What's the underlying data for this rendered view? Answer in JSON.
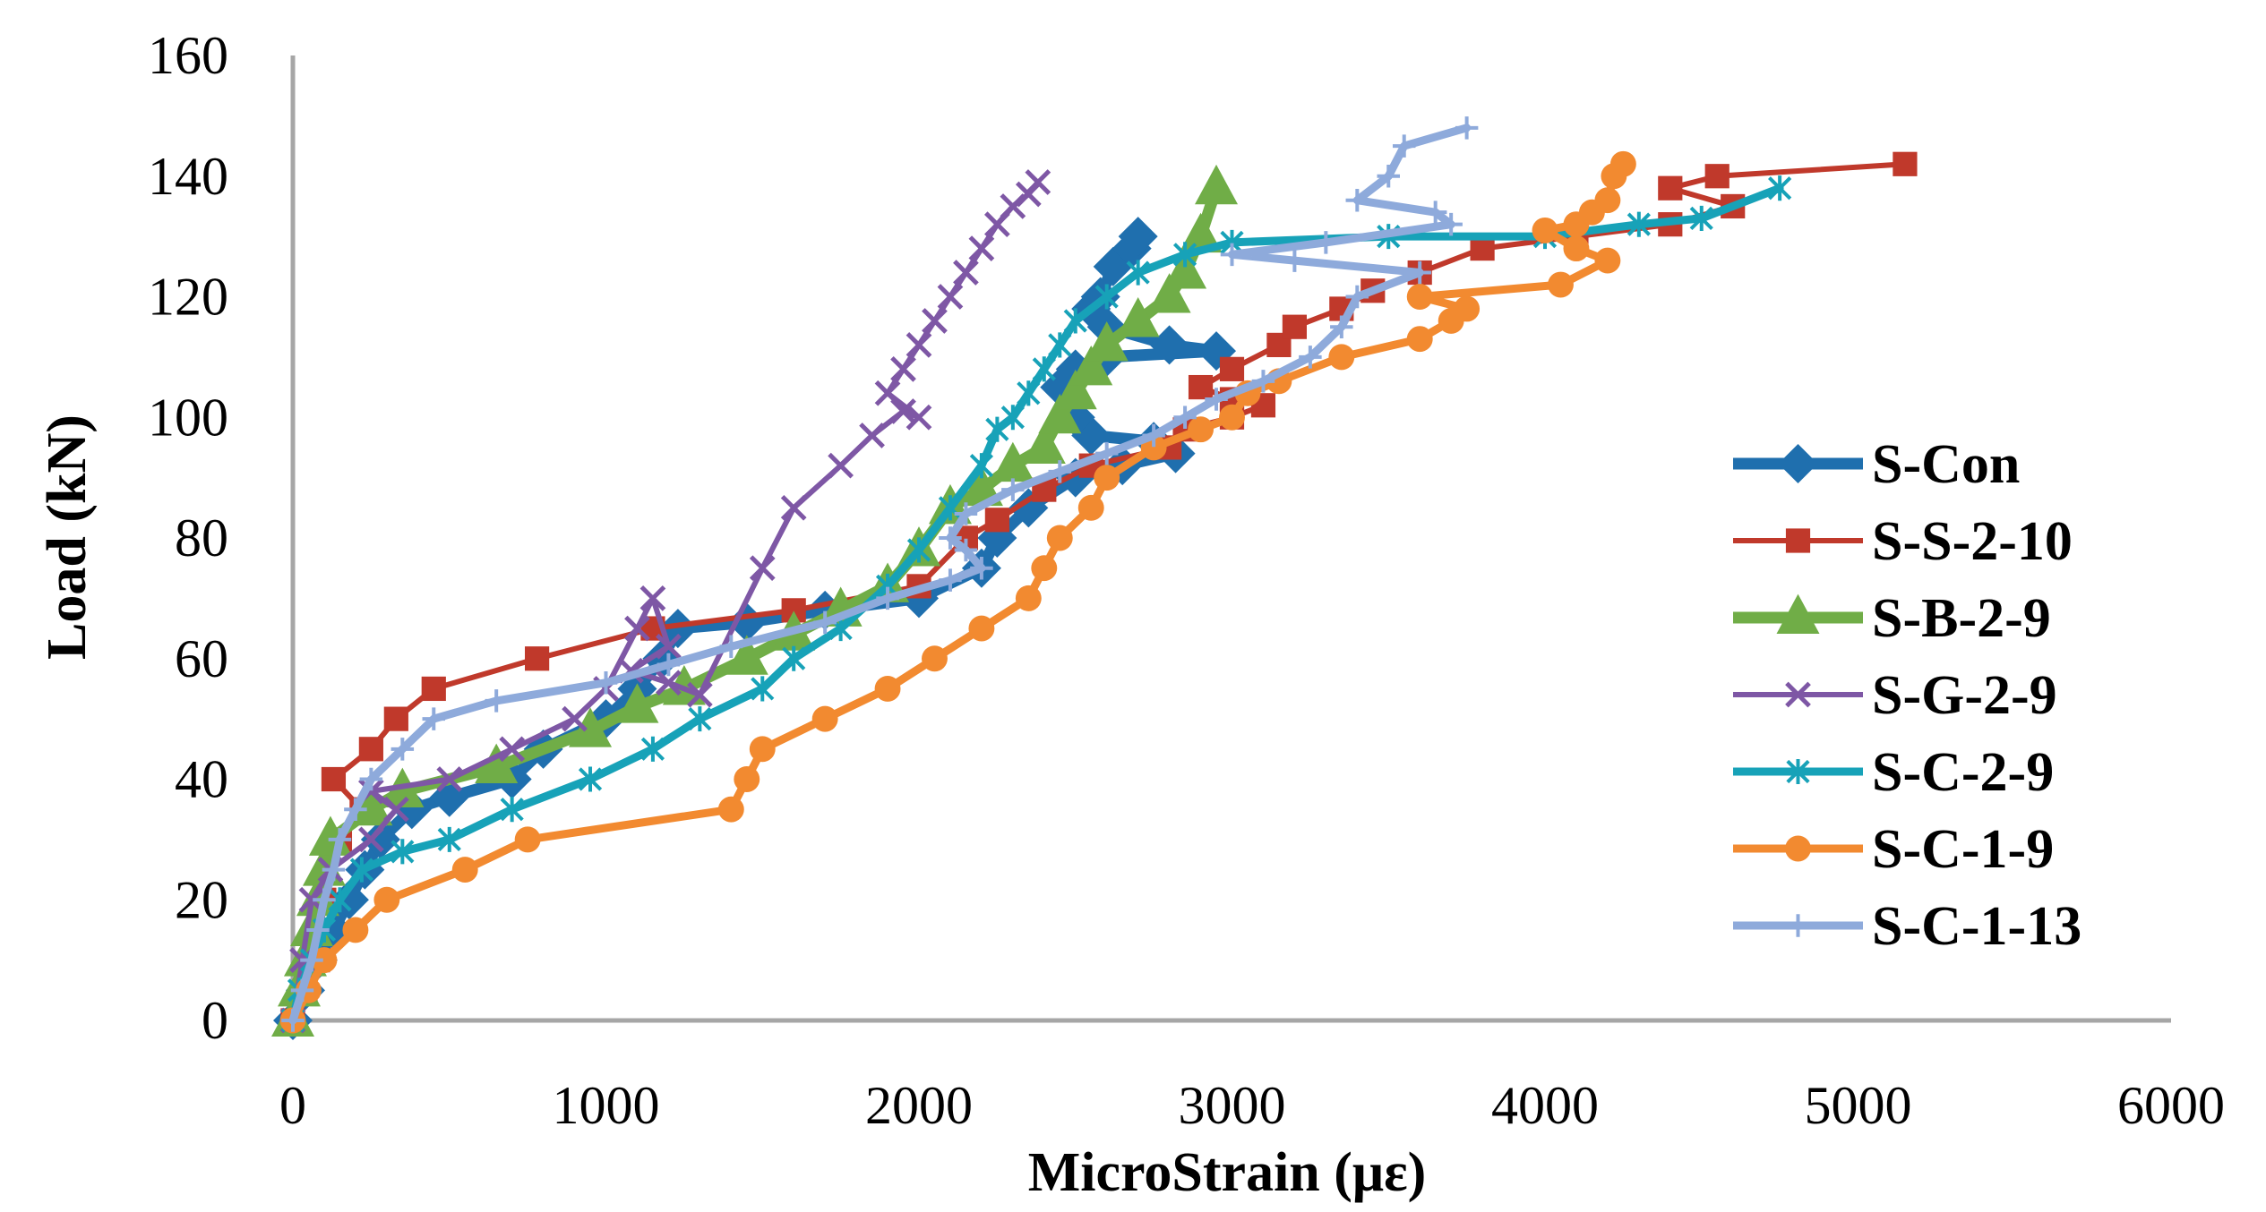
{
  "chart_data": {
    "type": "line",
    "title": "",
    "xlabel": "MicroStrain (με)",
    "ylabel": "Load (kN)",
    "xlim": [
      0,
      6000
    ],
    "ylim": [
      0,
      160
    ],
    "xticks": [
      0,
      1000,
      2000,
      3000,
      4000,
      5000,
      6000
    ],
    "yticks": [
      0,
      20,
      40,
      60,
      80,
      100,
      120,
      140,
      160
    ],
    "legend_position": "right",
    "series": [
      {
        "name": "S-Con",
        "color": "#1F6FAE",
        "marker": "diamond",
        "width": 13,
        "points": [
          [
            0,
            0
          ],
          [
            40,
            5
          ],
          [
            80,
            10
          ],
          [
            130,
            15
          ],
          [
            180,
            20
          ],
          [
            230,
            25
          ],
          [
            280,
            30
          ],
          [
            380,
            35
          ],
          [
            500,
            37
          ],
          [
            700,
            40
          ],
          [
            800,
            45
          ],
          [
            1000,
            50
          ],
          [
            1100,
            55
          ],
          [
            1180,
            60
          ],
          [
            1230,
            65
          ],
          [
            1450,
            66
          ],
          [
            1700,
            68
          ],
          [
            2000,
            70
          ],
          [
            2200,
            75
          ],
          [
            2250,
            80
          ],
          [
            2350,
            85
          ],
          [
            2500,
            90
          ],
          [
            2650,
            92
          ],
          [
            2820,
            94
          ],
          [
            2750,
            96
          ],
          [
            2550,
            97
          ],
          [
            2500,
            100
          ],
          [
            2450,
            105
          ],
          [
            2500,
            108
          ],
          [
            2600,
            110
          ],
          [
            2950,
            111
          ],
          [
            2800,
            112
          ],
          [
            2600,
            115
          ],
          [
            2550,
            118
          ],
          [
            2580,
            120
          ],
          [
            2620,
            125
          ],
          [
            2680,
            128
          ],
          [
            2700,
            130
          ]
        ]
      },
      {
        "name": "S-S-2-10",
        "color": "#C0392B",
        "marker": "square",
        "width": 6,
        "points": [
          [
            0,
            0
          ],
          [
            40,
            5
          ],
          [
            80,
            10
          ],
          [
            100,
            20
          ],
          [
            150,
            30
          ],
          [
            220,
            35
          ],
          [
            130,
            40
          ],
          [
            250,
            45
          ],
          [
            330,
            50
          ],
          [
            450,
            55
          ],
          [
            780,
            60
          ],
          [
            1150,
            65
          ],
          [
            1600,
            68
          ],
          [
            2000,
            72
          ],
          [
            2150,
            80
          ],
          [
            2250,
            83
          ],
          [
            2400,
            88
          ],
          [
            2550,
            92
          ],
          [
            2800,
            95
          ],
          [
            2850,
            98
          ],
          [
            3000,
            100
          ],
          [
            3100,
            102
          ],
          [
            3000,
            103
          ],
          [
            2900,
            105
          ],
          [
            3000,
            108
          ],
          [
            3150,
            112
          ],
          [
            3200,
            115
          ],
          [
            3350,
            118
          ],
          [
            3450,
            121
          ],
          [
            3600,
            124
          ],
          [
            3800,
            128
          ],
          [
            4100,
            130
          ],
          [
            4400,
            132
          ],
          [
            4600,
            135
          ],
          [
            4400,
            138
          ],
          [
            4550,
            140
          ],
          [
            5150,
            142
          ]
        ]
      },
      {
        "name": "S-B-2-9",
        "color": "#70AD47",
        "marker": "triangle",
        "width": 13,
        "points": [
          [
            0,
            0
          ],
          [
            20,
            5
          ],
          [
            40,
            10
          ],
          [
            60,
            15
          ],
          [
            80,
            20
          ],
          [
            100,
            25
          ],
          [
            120,
            30
          ],
          [
            250,
            35
          ],
          [
            350,
            38
          ],
          [
            650,
            42
          ],
          [
            950,
            48
          ],
          [
            1100,
            52
          ],
          [
            1250,
            55
          ],
          [
            1450,
            60
          ],
          [
            1600,
            64
          ],
          [
            1750,
            68
          ],
          [
            1900,
            72
          ],
          [
            2000,
            78
          ],
          [
            2100,
            85
          ],
          [
            2200,
            88
          ],
          [
            2300,
            92
          ],
          [
            2400,
            95
          ],
          [
            2450,
            100
          ],
          [
            2500,
            104
          ],
          [
            2550,
            108
          ],
          [
            2600,
            112
          ],
          [
            2700,
            116
          ],
          [
            2800,
            120
          ],
          [
            2850,
            124
          ],
          [
            2900,
            130
          ],
          [
            2950,
            138
          ]
        ]
      },
      {
        "name": "S-G-2-9",
        "color": "#7E57A5",
        "marker": "x",
        "width": 6,
        "points": [
          [
            0,
            0
          ],
          [
            30,
            10
          ],
          [
            60,
            20
          ],
          [
            120,
            25
          ],
          [
            250,
            30
          ],
          [
            330,
            35
          ],
          [
            250,
            38
          ],
          [
            500,
            40
          ],
          [
            700,
            45
          ],
          [
            900,
            50
          ],
          [
            1000,
            55
          ],
          [
            1100,
            65
          ],
          [
            1150,
            70
          ],
          [
            1200,
            62
          ],
          [
            1080,
            58
          ],
          [
            1200,
            56
          ],
          [
            1300,
            54
          ],
          [
            1500,
            75
          ],
          [
            1600,
            85
          ],
          [
            1750,
            92
          ],
          [
            1850,
            97
          ],
          [
            1950,
            101
          ],
          [
            2000,
            100
          ],
          [
            1900,
            104
          ],
          [
            1950,
            108
          ],
          [
            2000,
            112
          ],
          [
            2050,
            116
          ],
          [
            2100,
            120
          ],
          [
            2150,
            124
          ],
          [
            2200,
            128
          ],
          [
            2250,
            132
          ],
          [
            2300,
            135
          ],
          [
            2350,
            137
          ],
          [
            2380,
            139
          ]
        ]
      },
      {
        "name": "S-C-2-9",
        "color": "#17A2B8",
        "marker": "asterisk",
        "width": 9,
        "points": [
          [
            0,
            0
          ],
          [
            20,
            5
          ],
          [
            60,
            10
          ],
          [
            100,
            15
          ],
          [
            150,
            20
          ],
          [
            220,
            25
          ],
          [
            350,
            28
          ],
          [
            500,
            30
          ],
          [
            700,
            35
          ],
          [
            950,
            40
          ],
          [
            1150,
            45
          ],
          [
            1300,
            50
          ],
          [
            1500,
            55
          ],
          [
            1600,
            60
          ],
          [
            1750,
            65
          ],
          [
            1900,
            72
          ],
          [
            2000,
            78
          ],
          [
            2100,
            85
          ],
          [
            2200,
            92
          ],
          [
            2250,
            98
          ],
          [
            2300,
            100
          ],
          [
            2350,
            104
          ],
          [
            2400,
            108
          ],
          [
            2450,
            112
          ],
          [
            2500,
            116
          ],
          [
            2600,
            120
          ],
          [
            2700,
            124
          ],
          [
            2850,
            127
          ],
          [
            3000,
            129
          ],
          [
            3500,
            130
          ],
          [
            4000,
            130
          ],
          [
            4300,
            132
          ],
          [
            4500,
            133
          ],
          [
            4750,
            138
          ]
        ]
      },
      {
        "name": "S-C-1-9",
        "color": "#F28A30",
        "marker": "circle",
        "width": 9,
        "points": [
          [
            0,
            0
          ],
          [
            50,
            5
          ],
          [
            100,
            10
          ],
          [
            200,
            15
          ],
          [
            300,
            20
          ],
          [
            550,
            25
          ],
          [
            750,
            30
          ],
          [
            1400,
            35
          ],
          [
            1450,
            40
          ],
          [
            1500,
            45
          ],
          [
            1700,
            50
          ],
          [
            1900,
            55
          ],
          [
            2050,
            60
          ],
          [
            2200,
            65
          ],
          [
            2350,
            70
          ],
          [
            2400,
            75
          ],
          [
            2450,
            80
          ],
          [
            2550,
            85
          ],
          [
            2600,
            90
          ],
          [
            2750,
            95
          ],
          [
            2900,
            98
          ],
          [
            3000,
            100
          ],
          [
            3050,
            104
          ],
          [
            3150,
            106
          ],
          [
            3350,
            110
          ],
          [
            3600,
            113
          ],
          [
            3700,
            116
          ],
          [
            3750,
            118
          ],
          [
            3600,
            120
          ],
          [
            4050,
            122
          ],
          [
            4200,
            126
          ],
          [
            4100,
            128
          ],
          [
            4000,
            131
          ],
          [
            4100,
            132
          ],
          [
            4150,
            134
          ],
          [
            4200,
            136
          ],
          [
            4220,
            140
          ],
          [
            4250,
            142
          ]
        ]
      },
      {
        "name": "S-C-1-13",
        "color": "#8EAADB",
        "marker": "plus",
        "width": 9,
        "points": [
          [
            0,
            0
          ],
          [
            30,
            5
          ],
          [
            60,
            10
          ],
          [
            80,
            15
          ],
          [
            100,
            20
          ],
          [
            130,
            25
          ],
          [
            150,
            30
          ],
          [
            200,
            35
          ],
          [
            250,
            40
          ],
          [
            350,
            45
          ],
          [
            450,
            50
          ],
          [
            650,
            53
          ],
          [
            1000,
            56
          ],
          [
            1200,
            59
          ],
          [
            1400,
            62
          ],
          [
            1700,
            66
          ],
          [
            1900,
            70
          ],
          [
            2100,
            73
          ],
          [
            2200,
            75
          ],
          [
            2150,
            78
          ],
          [
            2100,
            80
          ],
          [
            2150,
            84
          ],
          [
            2300,
            88
          ],
          [
            2450,
            91
          ],
          [
            2600,
            94
          ],
          [
            2750,
            97
          ],
          [
            2850,
            100
          ],
          [
            2950,
            103
          ],
          [
            3100,
            106
          ],
          [
            3250,
            110
          ],
          [
            3350,
            115
          ],
          [
            3400,
            120
          ],
          [
            3600,
            124
          ],
          [
            3200,
            126
          ],
          [
            3000,
            127
          ],
          [
            3300,
            129
          ],
          [
            3700,
            132
          ],
          [
            3650,
            134
          ],
          [
            3400,
            136
          ],
          [
            3500,
            140
          ],
          [
            3550,
            145
          ],
          [
            3750,
            148
          ]
        ]
      }
    ]
  }
}
